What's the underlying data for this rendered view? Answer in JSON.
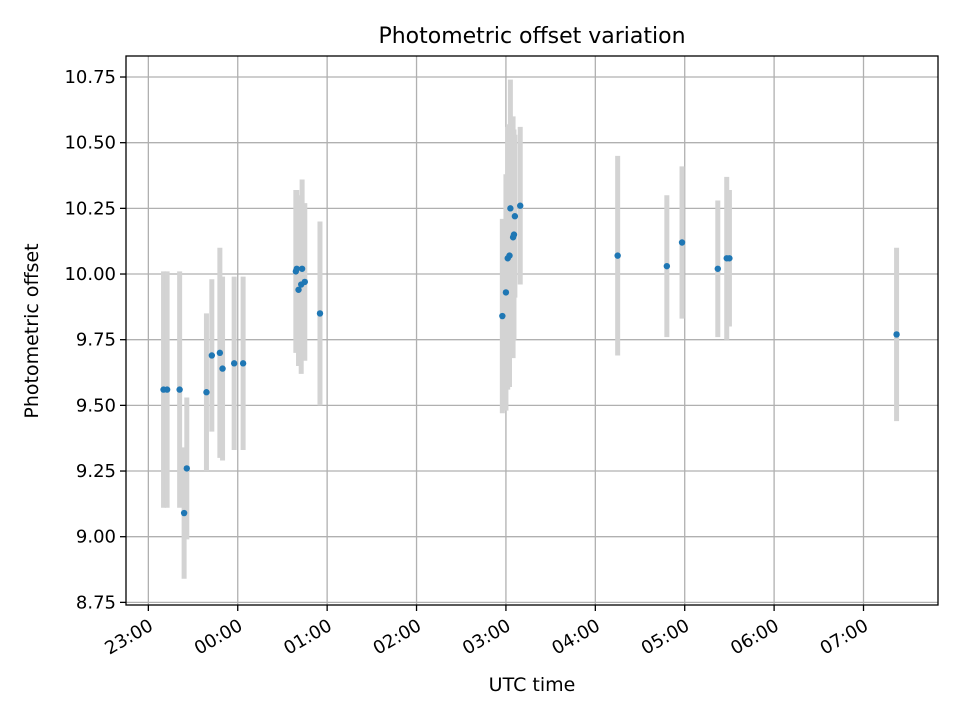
{
  "chart_data": {
    "type": "scatter",
    "title": "Photometric offset variation",
    "xlabel": "UTC time",
    "ylabel": "Photometric offset",
    "xlim": [
      "22:45",
      "31:50"
    ],
    "ylim": [
      8.74,
      10.83
    ],
    "grid": true,
    "x_ticks": [
      {
        "hour": 23,
        "label": "23:00"
      },
      {
        "hour": 24,
        "label": "00:00"
      },
      {
        "hour": 25,
        "label": "01:00"
      },
      {
        "hour": 26,
        "label": "02:00"
      },
      {
        "hour": 27,
        "label": "03:00"
      },
      {
        "hour": 28,
        "label": "04:00"
      },
      {
        "hour": 29,
        "label": "05:00"
      },
      {
        "hour": 30,
        "label": "06:00"
      },
      {
        "hour": 31,
        "label": "07:00"
      }
    ],
    "y_ticks": [
      "8.75",
      "9.00",
      "9.25",
      "9.50",
      "9.75",
      "10.00",
      "10.25",
      "10.50",
      "10.75"
    ],
    "marker_color": "#1f77b4",
    "errorbar_color": "#d3d3d3",
    "x_units": "hours after 00:00 UTC of the first night (values > 24 are next day)",
    "points": [
      {
        "x": 23.17,
        "y": 9.56,
        "err": 0.45
      },
      {
        "x": 23.21,
        "y": 9.56,
        "err": 0.45
      },
      {
        "x": 23.35,
        "y": 9.56,
        "err": 0.45
      },
      {
        "x": 23.4,
        "y": 9.09,
        "err": 0.25
      },
      {
        "x": 23.43,
        "y": 9.26,
        "err": 0.27
      },
      {
        "x": 23.65,
        "y": 9.55,
        "err": 0.3
      },
      {
        "x": 23.71,
        "y": 9.69,
        "err": 0.29
      },
      {
        "x": 23.8,
        "y": 9.7,
        "err": 0.4
      },
      {
        "x": 23.83,
        "y": 9.64,
        "err": 0.35
      },
      {
        "x": 23.96,
        "y": 9.66,
        "err": 0.33
      },
      {
        "x": 24.06,
        "y": 9.66,
        "err": 0.33
      },
      {
        "x": 24.65,
        "y": 10.01,
        "err": 0.31
      },
      {
        "x": 24.66,
        "y": 10.02,
        "err": 0.3
      },
      {
        "x": 24.68,
        "y": 9.94,
        "err": 0.29
      },
      {
        "x": 24.71,
        "y": 9.96,
        "err": 0.34
      },
      {
        "x": 24.72,
        "y": 10.02,
        "err": 0.34
      },
      {
        "x": 24.75,
        "y": 9.97,
        "err": 0.3
      },
      {
        "x": 24.92,
        "y": 9.85,
        "err": 0.35
      },
      {
        "x": 26.96,
        "y": 9.84,
        "err": 0.37
      },
      {
        "x": 27.0,
        "y": 9.93,
        "err": 0.45
      },
      {
        "x": 27.02,
        "y": 10.06,
        "err": 0.5
      },
      {
        "x": 27.04,
        "y": 10.07,
        "err": 0.5
      },
      {
        "x": 27.05,
        "y": 10.25,
        "err": 0.49
      },
      {
        "x": 27.08,
        "y": 10.14,
        "err": 0.46
      },
      {
        "x": 27.09,
        "y": 10.15,
        "err": 0.4
      },
      {
        "x": 27.1,
        "y": 10.22,
        "err": 0.31
      },
      {
        "x": 27.16,
        "y": 10.26,
        "err": 0.3
      },
      {
        "x": 28.25,
        "y": 10.07,
        "err": 0.38
      },
      {
        "x": 28.8,
        "y": 10.03,
        "err": 0.27
      },
      {
        "x": 28.97,
        "y": 10.12,
        "err": 0.29
      },
      {
        "x": 29.37,
        "y": 10.02,
        "err": 0.26
      },
      {
        "x": 29.47,
        "y": 10.06,
        "err": 0.31
      },
      {
        "x": 29.5,
        "y": 10.06,
        "err": 0.26
      },
      {
        "x": 31.37,
        "y": 9.77,
        "err": 0.33
      }
    ]
  }
}
